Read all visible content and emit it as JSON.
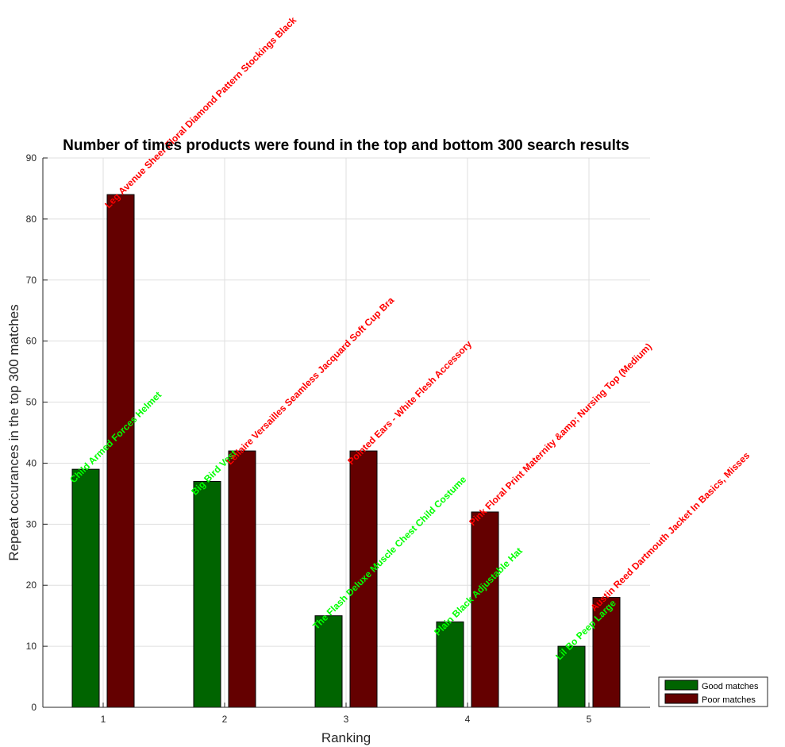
{
  "chart_data": {
    "type": "bar",
    "title": "Number of times products were found in the top and bottom 300 search results",
    "xlabel": "Ranking",
    "ylabel": "Repeat occurances in the top 300 matches",
    "categories": [
      "1",
      "2",
      "3",
      "4",
      "5"
    ],
    "ylim": [
      0,
      90
    ],
    "yticks": [
      0,
      10,
      20,
      30,
      40,
      50,
      60,
      70,
      80,
      90
    ],
    "grid": true,
    "legend_position": "bottom-right-outside",
    "series": [
      {
        "name": "Good matches",
        "color": "#006400",
        "label_color": "#00ff00",
        "values": [
          39,
          37,
          15,
          14,
          10
        ],
        "labels": [
          "Child Armed Forces Helmet",
          "Big Bird Vest",
          "The Flash Deluxe Muscle Chest Child Costume",
          "Plain Black Adjustable Hat",
          "Lil Bo Peep Large"
        ]
      },
      {
        "name": "Poor matches",
        "color": "#640000",
        "label_color": "#ff0000",
        "values": [
          84,
          42,
          42,
          32,
          18
        ],
        "labels": [
          "Leg Avenue Sheer Floral Diamond Pattern Stockings Black",
          "Leilaire Versailles Seamless Jacquard Soft Cup Bra",
          "Pointed Ears - White Flesh Accessory",
          "Pink Floral Print Maternity &amp; Nursing Top (Medium)",
          "Austin Reed Dartmouth Jacket In Basics, Misses"
        ]
      }
    ]
  }
}
